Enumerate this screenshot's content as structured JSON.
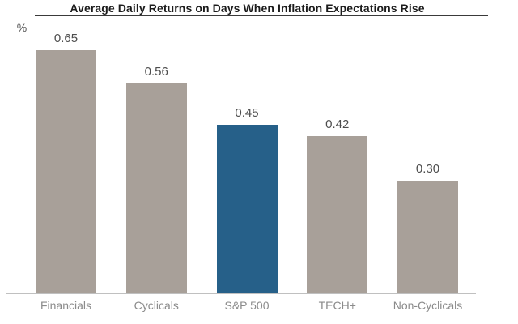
{
  "chart_data": {
    "type": "bar",
    "title": "Average Daily Returns on Days When Inflation Expectations Rise",
    "xlabel": "",
    "ylabel": "%",
    "categories": [
      "Financials",
      "Cyclicals",
      "S&P 500",
      "TECH+",
      "Non-Cyclicals"
    ],
    "values": [
      0.65,
      0.56,
      0.45,
      0.42,
      0.3
    ],
    "value_labels": [
      "0.65",
      "0.56",
      "0.45",
      "0.42",
      "0.30"
    ],
    "highlight_index": 2,
    "highlight_category": "S&P 500",
    "ylim": [
      0,
      0.74
    ],
    "grid": false,
    "legend": false,
    "colors": {
      "bar_default": "#a8a099",
      "bar_highlight": "#266089",
      "title": "#1c1c1c",
      "value_label": "#4d4d4d",
      "category_label": "#8b8b8b",
      "axis_line": "#c0c0c0"
    }
  }
}
